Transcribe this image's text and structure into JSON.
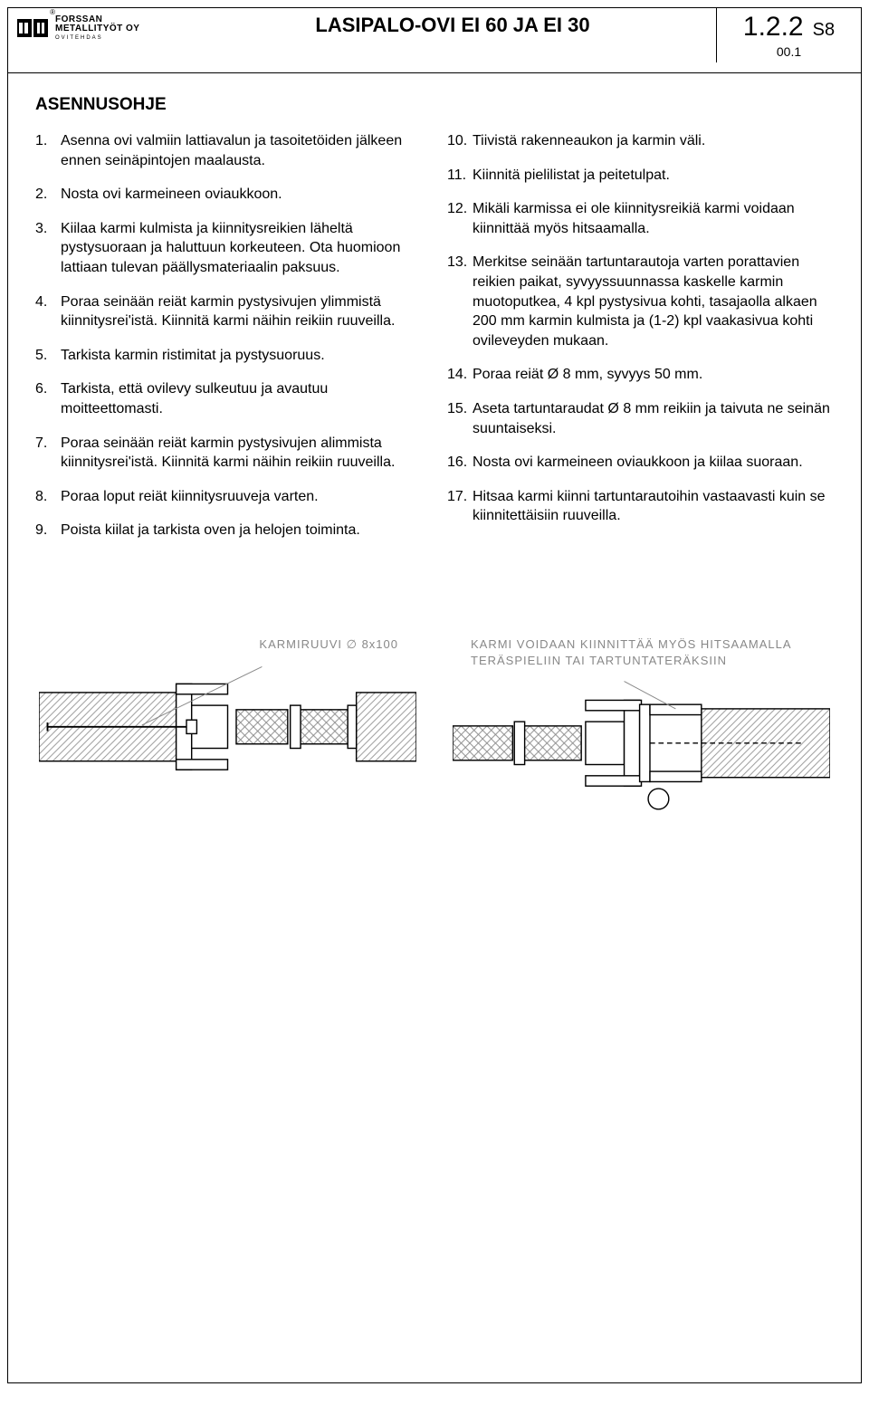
{
  "header": {
    "logo": {
      "company_line1": "FORSSAN",
      "company_line2": "METALLITYÖT OY",
      "company_line3": "OVITEHDAS"
    },
    "doc_title": "LASIPALO-OVI EI 60 JA EI 30",
    "code_main": "1.2.2",
    "code_suffix": "S8",
    "code_sub": "00.1"
  },
  "section_title": "ASENNUSOHJE",
  "steps_left": [
    {
      "n": "1.",
      "t": "Asenna ovi valmiin lattiavalun ja tasoitetöiden jälkeen ennen seinäpintojen maalausta."
    },
    {
      "n": "2.",
      "t": "Nosta ovi karmeineen oviaukkoon."
    },
    {
      "n": "3.",
      "t": "Kiilaa karmi kulmista ja kiinnitysreikien läheltä pystysuoraan ja haluttuun korkeuteen. Ota huomioon lattiaan tulevan päällysmateriaalin paksuus."
    },
    {
      "n": "4.",
      "t": "Poraa seinään reiät karmin pystysivujen ylimmistä kiinnitysrei'istä. Kiinnitä karmi näihin reikiin ruuveilla."
    },
    {
      "n": "5.",
      "t": "Tarkista karmin ristimitat ja pystysuoruus."
    },
    {
      "n": "6.",
      "t": "Tarkista, että ovilevy sulkeutuu ja avautuu moitteettomasti."
    },
    {
      "n": "7.",
      "t": "Poraa seinään reiät karmin pystysivujen alimmista kiinnitysrei'istä. Kiinnitä karmi näihin reikiin ruuveilla."
    },
    {
      "n": "8.",
      "t": "Poraa loput reiät kiinnitysruuveja varten."
    },
    {
      "n": "9.",
      "t": "Poista kiilat ja tarkista oven ja helojen toiminta."
    }
  ],
  "steps_right": [
    {
      "n": "10.",
      "t": "Tiivistä rakenneaukon ja karmin väli."
    },
    {
      "n": "11.",
      "t": "Kiinnitä pielilistat ja peitetulpat."
    },
    {
      "n": "12.",
      "t": "Mikäli karmissa ei ole kiinnitysreikiä karmi voidaan kiinnittää myös hitsaamalla."
    },
    {
      "n": "13.",
      "t": "Merkitse seinään tartuntarautoja varten porattavien reikien paikat, syvyyssuunnassa kaskelle karmin muotoputkea, 4 kpl pystysivua kohti, tasajaolla alkaen 200 mm karmin kulmista ja (1-2) kpl vaakasivua kohti ovileveyden mukaan."
    },
    {
      "n": "14.",
      "t": "Poraa reiät Ø 8 mm, syvyys 50 mm."
    },
    {
      "n": "15.",
      "t": "Aseta tartuntaraudat Ø 8 mm reikiin ja taivuta ne seinän suuntaiseksi."
    },
    {
      "n": "16.",
      "t": "Nosta ovi karmeineen oviaukkoon ja kiilaa suoraan."
    },
    {
      "n": "17.",
      "t": "Hitsaa karmi kiinni tartuntarautoihin vastaavasti kuin se kiinnitettäisiin ruuveilla."
    }
  ],
  "diagrams": {
    "left_caption": "KARMIRUUVI ∅ 8x100",
    "right_caption": "KARMI VOIDAAN KIINNITTÄÄ MYÖS HITSAAMALLA TERÄSPIELIIN TAI TARTUNTATERÄKSIIN"
  },
  "colors": {
    "text": "#000000",
    "caption": "#888888",
    "hatch": "#b0b0b0",
    "line": "#000000",
    "bg": "#ffffff"
  }
}
